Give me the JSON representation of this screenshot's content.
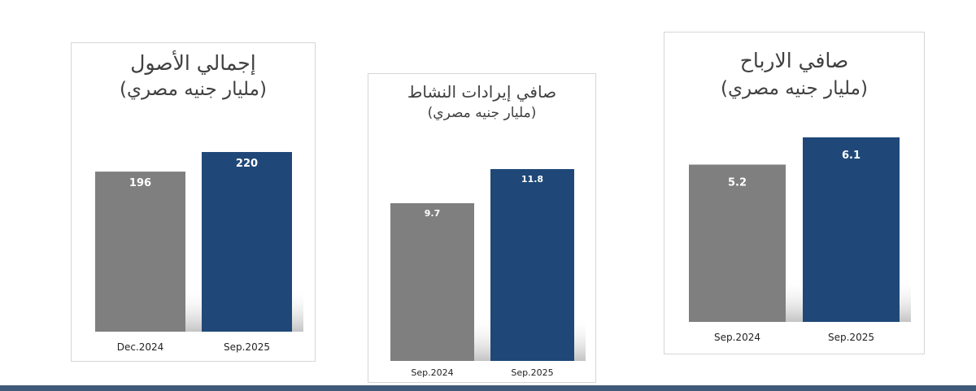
{
  "colors": {
    "previous_bar": "#7f7f7f",
    "current_bar": "#1f4878",
    "value_text": "#ffffff",
    "bottom_bar": "#3f5a78"
  },
  "chart_data": [
    {
      "type": "bar",
      "title": "إجمالي الأصول",
      "subtitle": "(مليار جنيه مصري)",
      "categories": [
        "Dec.2024",
        "Sep.2025"
      ],
      "values": [
        196,
        220
      ],
      "value_labels": [
        "196",
        "220"
      ],
      "legend": "none",
      "grid": false
    },
    {
      "type": "bar",
      "title": "صافي إيرادات النشاط",
      "subtitle": "(مليار جنيه مصري)",
      "categories": [
        "Sep.2024",
        "Sep.2025"
      ],
      "values": [
        9.7,
        11.8
      ],
      "value_labels": [
        "9.7",
        "11.8"
      ],
      "legend": "none",
      "grid": false
    },
    {
      "type": "bar",
      "title": "صافي الارباح",
      "subtitle": "(مليار جنيه مصري)",
      "categories": [
        "Sep.2024",
        "Sep.2025"
      ],
      "values": [
        5.2,
        6.1
      ],
      "value_labels": [
        "5.2",
        "6.1"
      ],
      "legend": "none",
      "grid": false
    }
  ]
}
